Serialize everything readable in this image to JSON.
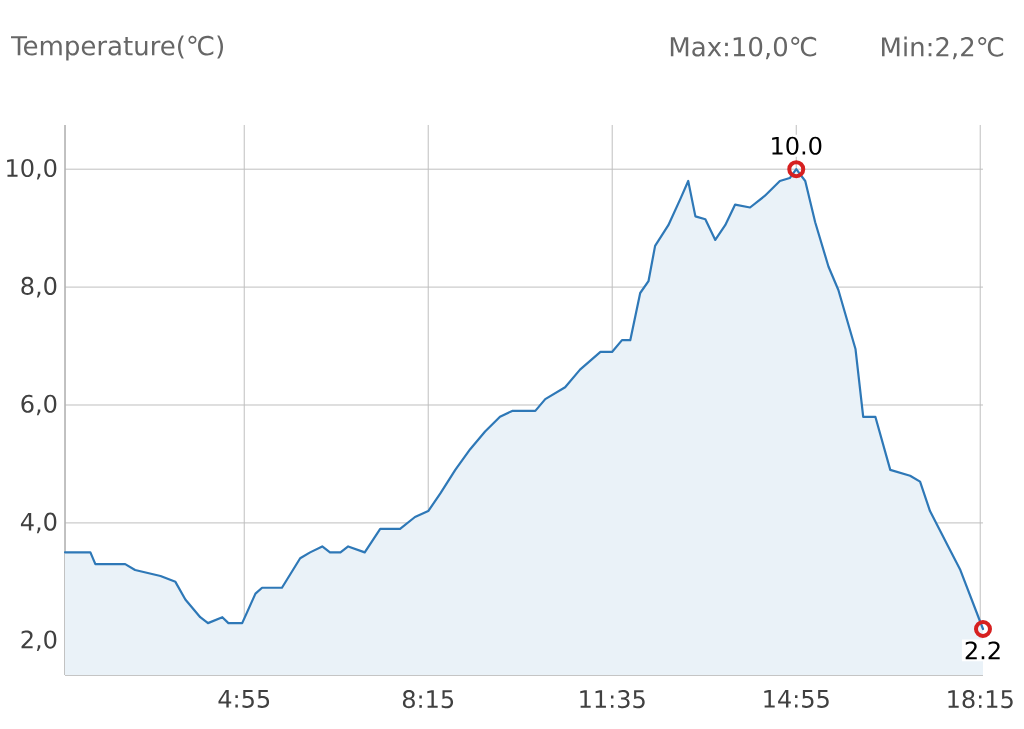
{
  "chart_data": {
    "type": "area",
    "title": "Temperature(℃)",
    "annotations": [
      "Max:10,0℃",
      "Min:2,2℃"
    ],
    "xlim": [
      1.67,
      18.3
    ],
    "ylim": [
      1.42,
      10.75
    ],
    "xticks": [
      {
        "value": 4.917,
        "label": "4:55"
      },
      {
        "value": 8.25,
        "label": "8:15"
      },
      {
        "value": 11.583,
        "label": "11:35"
      },
      {
        "value": 14.917,
        "label": "14:55"
      },
      {
        "value": 18.25,
        "label": "18:15"
      }
    ],
    "yticks": [
      {
        "value": 2,
        "label": "2,0"
      },
      {
        "value": 4,
        "label": "4,0"
      },
      {
        "value": 6,
        "label": "6,0"
      },
      {
        "value": 8,
        "label": "8,0"
      },
      {
        "value": 10,
        "label": "10,0"
      }
    ],
    "grid": true,
    "series": [
      {
        "color": "#2e78b7",
        "x": [
          1.67,
          2.13,
          2.22,
          2.76,
          2.94,
          3.4,
          3.67,
          3.85,
          4.12,
          4.26,
          4.52,
          4.63,
          4.88,
          5.12,
          5.24,
          5.6,
          5.93,
          6.11,
          6.33,
          6.47,
          6.66,
          6.8,
          7.1,
          7.38,
          7.74,
          8.01,
          8.25,
          8.47,
          8.74,
          9.01,
          9.28,
          9.55,
          9.77,
          10.19,
          10.37,
          10.73,
          11.0,
          11.37,
          11.58,
          11.76,
          11.91,
          12.09,
          12.24,
          12.36,
          12.6,
          12.82,
          12.96,
          13.09,
          13.27,
          13.45,
          13.63,
          13.81,
          14.08,
          14.35,
          14.62,
          14.8,
          14.917,
          15.08,
          15.26,
          15.5,
          15.68,
          15.99,
          16.13,
          16.35,
          16.62,
          16.98,
          17.16,
          17.34,
          17.67,
          17.89,
          18.3
        ],
        "values": [
          3.5,
          3.5,
          3.3,
          3.3,
          3.2,
          3.1,
          3.0,
          2.7,
          2.4,
          2.3,
          2.4,
          2.3,
          2.3,
          2.8,
          2.9,
          2.9,
          3.4,
          3.5,
          3.6,
          3.5,
          3.5,
          3.6,
          3.5,
          3.9,
          3.9,
          4.1,
          4.2,
          4.5,
          4.9,
          5.25,
          5.55,
          5.8,
          5.9,
          5.9,
          6.1,
          6.3,
          6.6,
          6.9,
          6.9,
          7.1,
          7.1,
          7.9,
          8.1,
          8.7,
          9.05,
          9.5,
          9.8,
          9.2,
          9.15,
          8.8,
          9.05,
          9.4,
          9.35,
          9.55,
          9.8,
          9.85,
          10.0,
          9.8,
          9.1,
          8.35,
          7.95,
          6.95,
          5.8,
          5.8,
          4.9,
          4.8,
          4.7,
          4.2,
          3.6,
          3.2,
          2.2
        ]
      },
      {
        "type": "scatter",
        "color": "#d62020",
        "marker": "circle",
        "x": [
          14.917,
          18.3
        ],
        "values": [
          10.0,
          2.2
        ],
        "value_labels": [
          "10.0",
          "2.2"
        ]
      }
    ]
  }
}
